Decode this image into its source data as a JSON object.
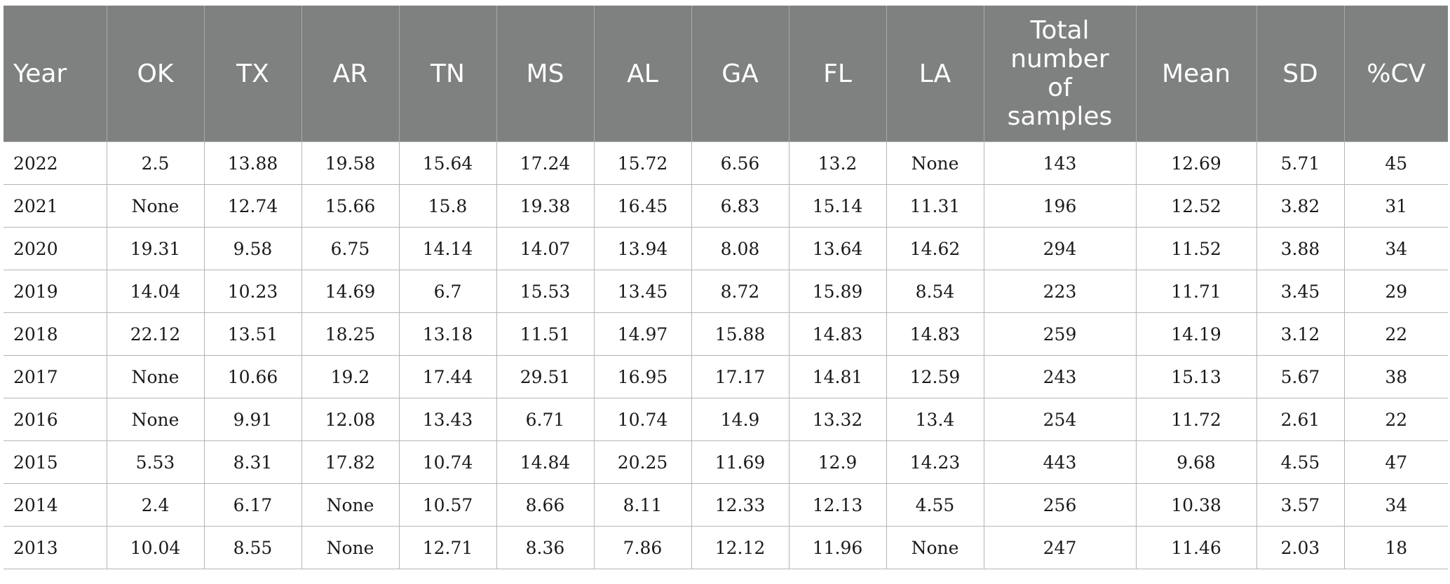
{
  "table": {
    "headers": [
      "Year",
      "OK",
      "TX",
      "AR",
      "TN",
      "MS",
      "AL",
      "GA",
      "FL",
      "LA",
      "Total number of samples",
      "Mean",
      "SD",
      "%CV"
    ],
    "rows": [
      [
        "2022",
        "2.5",
        "13.88",
        "19.58",
        "15.64",
        "17.24",
        "15.72",
        "6.56",
        "13.2",
        "None",
        "143",
        "12.69",
        "5.71",
        "45"
      ],
      [
        "2021",
        "None",
        "12.74",
        "15.66",
        "15.8",
        "19.38",
        "16.45",
        "6.83",
        "15.14",
        "11.31",
        "196",
        "12.52",
        "3.82",
        "31"
      ],
      [
        "2020",
        "19.31",
        "9.58",
        "6.75",
        "14.14",
        "14.07",
        "13.94",
        "8.08",
        "13.64",
        "14.62",
        "294",
        "11.52",
        "3.88",
        "34"
      ],
      [
        "2019",
        "14.04",
        "10.23",
        "14.69",
        "6.7",
        "15.53",
        "13.45",
        "8.72",
        "15.89",
        "8.54",
        "223",
        "11.71",
        "3.45",
        "29"
      ],
      [
        "2018",
        "22.12",
        "13.51",
        "18.25",
        "13.18",
        "11.51",
        "14.97",
        "15.88",
        "14.83",
        "14.83",
        "259",
        "14.19",
        "3.12",
        "22"
      ],
      [
        "2017",
        "None",
        "10.66",
        "19.2",
        "17.44",
        "29.51",
        "16.95",
        "17.17",
        "14.81",
        "12.59",
        "243",
        "15.13",
        "5.67",
        "38"
      ],
      [
        "2016",
        "None",
        "9.91",
        "12.08",
        "13.43",
        "6.71",
        "10.74",
        "14.9",
        "13.32",
        "13.4",
        "254",
        "11.72",
        "2.61",
        "22"
      ],
      [
        "2015",
        "5.53",
        "8.31",
        "17.82",
        "10.74",
        "14.84",
        "20.25",
        "11.69",
        "12.9",
        "14.23",
        "443",
        "9.68",
        "4.55",
        "47"
      ],
      [
        "2014",
        "2.4",
        "6.17",
        "None",
        "10.57",
        "8.66",
        "8.11",
        "12.33",
        "12.13",
        "4.55",
        "256",
        "10.38",
        "3.57",
        "34"
      ],
      [
        "2013",
        "10.04",
        "8.55",
        "None",
        "12.71",
        "8.36",
        "7.86",
        "12.12",
        "11.96",
        "None",
        "247",
        "11.46",
        "2.03",
        "18"
      ]
    ]
  }
}
